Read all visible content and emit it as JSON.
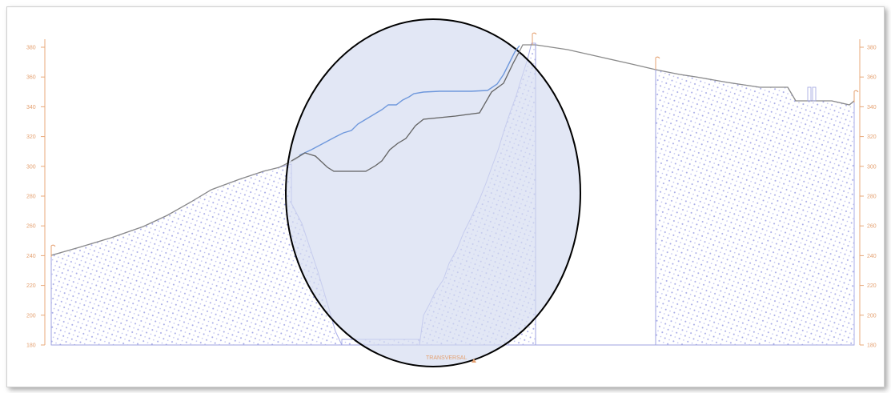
{
  "section": {
    "ticks": [
      "380",
      "360",
      "340",
      "320",
      "300",
      "280",
      "260",
      "240",
      "220",
      "200",
      "180"
    ],
    "footer_label": "TRANSVERSAL",
    "colors": {
      "terrain": "#888888",
      "design_line": "#7aa0e0",
      "hatch": "#9fa3e0",
      "axis": "#e8a878",
      "highlight_fill": "#dfe5f3"
    }
  }
}
